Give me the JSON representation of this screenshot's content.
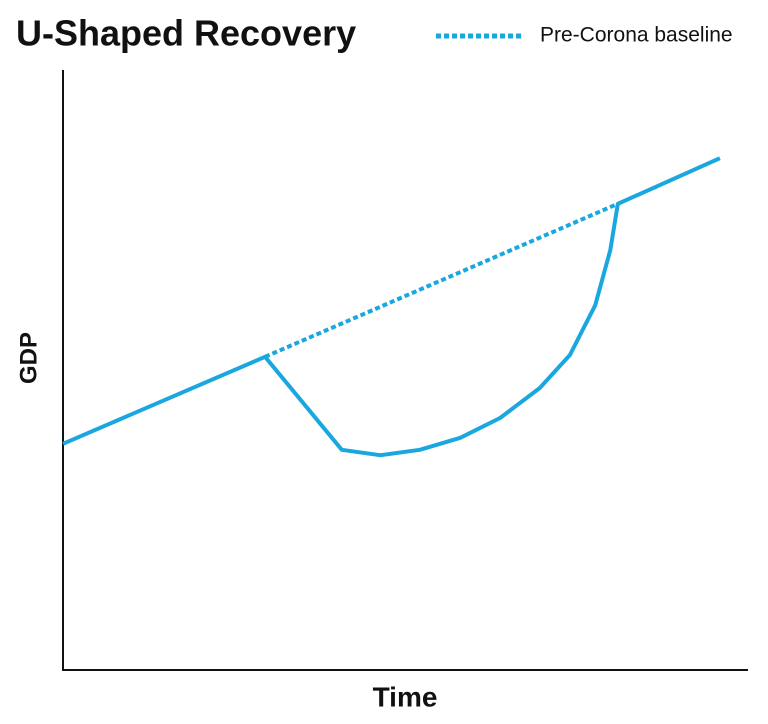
{
  "chart_data": {
    "type": "line",
    "title": "U-Shaped Recovery",
    "x_label": "Time",
    "y_label": "GDP",
    "xlim": [
      0,
      100
    ],
    "ylim": [
      0,
      100
    ],
    "series": [
      {
        "color": "#1aa7e0",
        "style": "solid",
        "x": [
          0,
          29.5,
          40.7,
          46.3,
          52.1,
          58,
          63.8,
          69.6,
          74,
          77.7,
          79.9,
          81,
          95.9
        ],
        "values": [
          37.7,
          52.2,
          36.7,
          35.8,
          36.7,
          38.7,
          42,
          47,
          52.5,
          60.8,
          70,
          77.7,
          85.3
        ]
      },
      {
        "name": "Pre-Corona baseline",
        "color": "#1aa7e0",
        "style": "dotted",
        "x": [
          29.5,
          81
        ],
        "values": [
          52.2,
          77.7
        ]
      }
    ]
  }
}
